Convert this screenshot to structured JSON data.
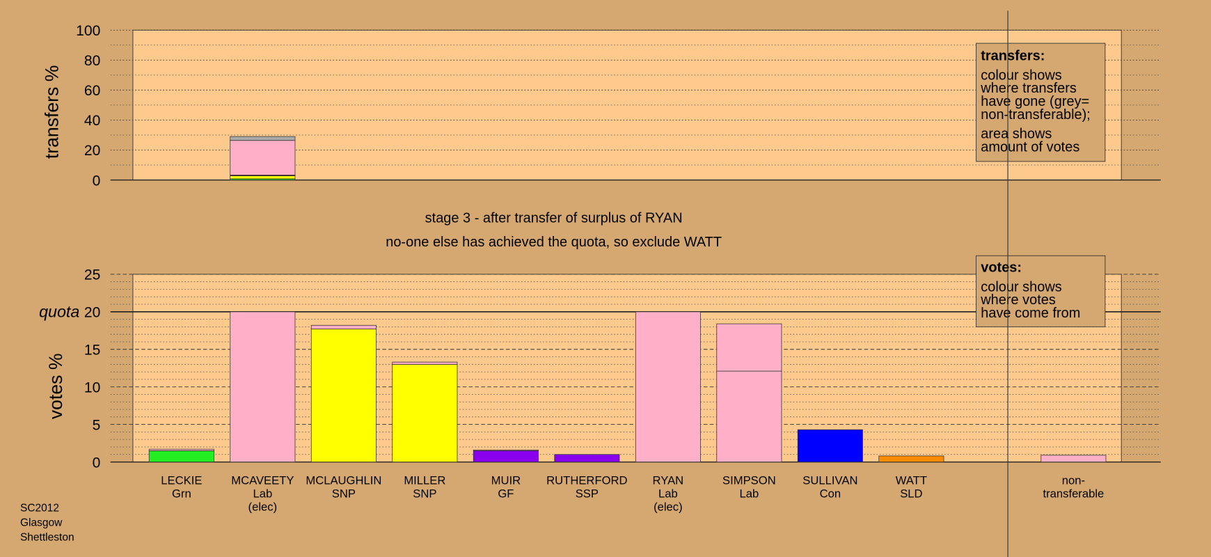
{
  "footer": [
    "SC2012",
    "Glasgow",
    "Shettleston"
  ],
  "stage": [
    "stage 3 - after transfer of surplus of RYAN",
    "no-one else has achieved the quota, so exclude WATT"
  ],
  "legends": [
    {
      "title": "transfers:",
      "paragraphs": [
        [
          "colour shows",
          "where transfers",
          "have gone (grey=",
          "non-transferable);"
        ],
        [
          "area shows",
          "amount of votes"
        ]
      ]
    },
    {
      "title": "votes:",
      "paragraphs": [
        [
          "colour shows",
          "where votes",
          "have come from"
        ]
      ]
    }
  ],
  "chart_data": [
    {
      "type": "bar",
      "stacked": true,
      "ylabel": "transfers %",
      "ylim": [
        0,
        100
      ],
      "yticks": [
        0,
        20,
        40,
        60,
        80,
        100
      ],
      "minor_yticks": [
        10,
        30,
        50,
        70,
        90
      ],
      "series": [
        {
          "color": "#22ee22",
          "values": [
            null,
            0.8,
            null,
            null,
            null,
            null,
            null,
            null,
            null,
            null,
            null,
            null
          ]
        },
        {
          "color": "#ffff00",
          "values": [
            null,
            2.0,
            null,
            null,
            null,
            null,
            null,
            null,
            null,
            null,
            null,
            null
          ]
        },
        {
          "color": "#880044",
          "values": [
            null,
            0.5,
            null,
            null,
            null,
            null,
            null,
            null,
            null,
            null,
            null,
            null
          ]
        },
        {
          "color": "#ffb0c8",
          "values": [
            null,
            23.1,
            null,
            null,
            null,
            null,
            null,
            null,
            null,
            null,
            null,
            null
          ]
        },
        {
          "color": "#aaaaaa",
          "values": [
            null,
            2.6,
            null,
            null,
            null,
            null,
            null,
            null,
            null,
            null,
            null,
            null
          ]
        }
      ]
    },
    {
      "type": "bar",
      "stacked": true,
      "ylabel": "votes %",
      "ylim": [
        0,
        25
      ],
      "yticks": [
        0,
        5,
        10,
        15,
        20,
        25
      ],
      "minor_yticks": [
        1,
        2,
        3,
        4,
        6,
        7,
        8,
        9,
        11,
        12,
        13,
        14,
        16,
        17,
        18,
        19,
        21,
        22,
        23,
        24
      ],
      "quota": {
        "value": 20,
        "label": "quota"
      },
      "categories": [
        [
          "LECKIE",
          "Grn"
        ],
        [
          "MCAVEETY",
          "Lab",
          "(elec)"
        ],
        [
          "MCLAUGHLIN",
          "SNP"
        ],
        [
          "MILLER",
          "SNP"
        ],
        [
          "MUIR",
          "GF"
        ],
        [
          "RUTHERFORD",
          "SSP"
        ],
        [
          "RYAN",
          "Lab",
          "(elec)"
        ],
        [
          "SIMPSON",
          "Lab"
        ],
        [
          "SULLIVAN",
          "Con"
        ],
        [
          "WATT",
          "SLD"
        ],
        null,
        [
          "non-",
          "transferable"
        ]
      ],
      "series": [
        {
          "colors": [
            "#22ee22",
            "#ffb0c8",
            "#ffff00",
            "#ffff00",
            "#8800ee",
            "#8800ee",
            "#ffb0c8",
            "#ffb0c8",
            "#0000ff",
            "#ff8c00",
            null,
            null
          ],
          "values": [
            1.5,
            20,
            17.7,
            13.0,
            1.5,
            1.0,
            20,
            12.1,
            4.3,
            0.8,
            null,
            null
          ]
        },
        {
          "color": "#ffb0c8",
          "values": [
            0.2,
            0,
            0.5,
            0.3,
            0.1,
            0,
            0,
            6.3,
            0,
            0,
            null,
            0.9
          ]
        }
      ]
    }
  ]
}
